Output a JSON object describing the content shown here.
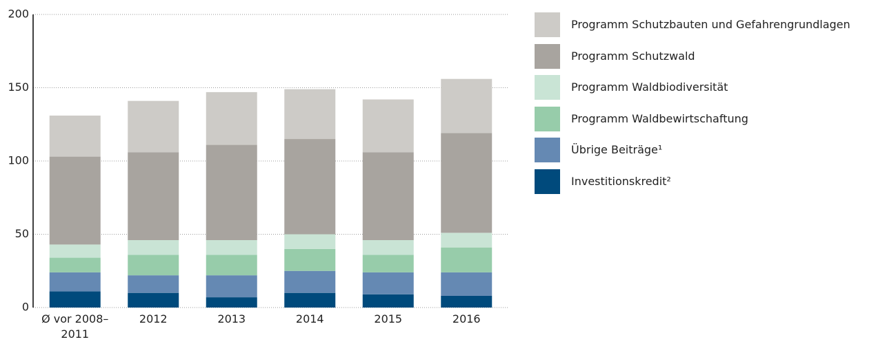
{
  "chart_data": {
    "type": "stacked_bar",
    "categories": [
      "Ø vor 2008–2011",
      "2012",
      "2013",
      "2014",
      "2015",
      "2016"
    ],
    "series": [
      {
        "name": "Investitionskredit²",
        "color": "#004a7c",
        "values": [
          11,
          10,
          7,
          10,
          9,
          8
        ]
      },
      {
        "name": "Übrige Beiträge¹",
        "color": "#6589b3",
        "values": [
          13,
          12,
          15,
          15,
          15,
          16
        ]
      },
      {
        "name": "Programm Waldbewirtschaftung",
        "color": "#97ccaa",
        "values": [
          10,
          14,
          14,
          15,
          12,
          17
        ]
      },
      {
        "name": "Programm Waldbiodiversität",
        "color": "#c9e4d5",
        "values": [
          9,
          10,
          10,
          10,
          10,
          10
        ]
      },
      {
        "name": "Programm Schutzwald",
        "color": "#a8a49f",
        "values": [
          60,
          60,
          65,
          65,
          60,
          68
        ]
      },
      {
        "name": "Programm Schutzbauten und Gefahrengrundlagen",
        "color": "#cdcbc7",
        "values": [
          28,
          35,
          36,
          34,
          36,
          37
        ]
      }
    ],
    "ylim": [
      0,
      200
    ],
    "yticks": [
      0,
      50,
      100,
      150,
      200
    ],
    "grid": true,
    "legend": "right"
  }
}
